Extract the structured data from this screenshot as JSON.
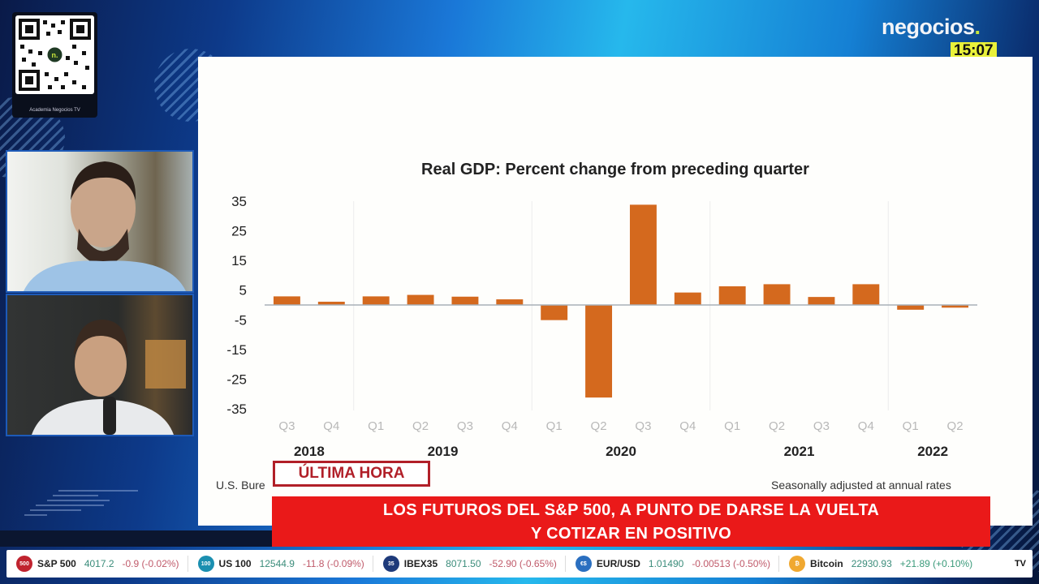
{
  "overlay": {
    "qr_caption": "Academia Negocios TV",
    "logo_text": "negocios",
    "logo_dot": ".",
    "clock": "15:07",
    "accent_color": "#e9f13a",
    "alert_color": "#ea1919"
  },
  "cams": [
    {
      "label": "guest-camera"
    },
    {
      "label": "host-camera"
    }
  ],
  "slide": {
    "source_note": "U.S. Bure",
    "footnote": "Seasonally adjusted at annual rates"
  },
  "breaking": {
    "label": "ÚLTIMA HORA",
    "headline_line1": "LOS FUTUROS DEL S&P 500, A PUNTO DE DARSE LA VUELTA",
    "headline_line2": "Y COTIZAR EN POSITIVO"
  },
  "ticker": [
    {
      "badge": "500",
      "badge_color": "#c0232f",
      "name": "S&P 500",
      "value": "4017.2",
      "change": "-0.9 (-0.02%)",
      "direction": "down"
    },
    {
      "badge": "100",
      "badge_color": "#1b8fb0",
      "name": "US 100",
      "value": "12544.9",
      "change": "-11.8 (-0.09%)",
      "direction": "down"
    },
    {
      "badge": "35",
      "badge_color": "#1e3a7a",
      "name": "IBEX35",
      "value": "8071.50",
      "change": "-52.90 (-0.65%)",
      "direction": "down"
    },
    {
      "badge": "€$",
      "badge_color": "#2a6fc0",
      "name": "EUR/USD",
      "value": "1.01490",
      "change": "-0.00513 (-0.50%)",
      "direction": "down"
    },
    {
      "badge": "₿",
      "badge_color": "#f0a830",
      "name": "Bitcoin",
      "value": "22930.93",
      "change": "+21.89 (+0.10%)",
      "direction": "up"
    }
  ],
  "ticker_brand": "TV",
  "chart_data": {
    "type": "bar",
    "title": "Real GDP:  Percent change from preceding quarter",
    "xlabel": "",
    "ylabel": "",
    "ylim": [
      -35,
      35
    ],
    "yticks": [
      35,
      25,
      15,
      5,
      -5,
      -15,
      -25,
      -35
    ],
    "categories": [
      "Q3",
      "Q4",
      "Q1",
      "Q2",
      "Q3",
      "Q4",
      "Q1",
      "Q2",
      "Q3",
      "Q4",
      "Q1",
      "Q2",
      "Q3",
      "Q4",
      "Q1",
      "Q2"
    ],
    "year_groups": [
      {
        "label": "2018",
        "start": 0,
        "count": 2
      },
      {
        "label": "2019",
        "start": 2,
        "count": 4
      },
      {
        "label": "2020",
        "start": 6,
        "count": 4
      },
      {
        "label": "2021",
        "start": 10,
        "count": 4
      },
      {
        "label": "2022",
        "start": 14,
        "count": 2
      }
    ],
    "series": [
      {
        "name": "Real GDP % change",
        "color": "#d4691e",
        "values": [
          2.9,
          1.1,
          2.9,
          3.4,
          2.8,
          1.9,
          -5.1,
          -31.2,
          33.8,
          4.2,
          6.3,
          7.0,
          2.7,
          7.0,
          -1.6,
          -0.9
        ]
      }
    ],
    "grid": false,
    "legend": "none"
  }
}
